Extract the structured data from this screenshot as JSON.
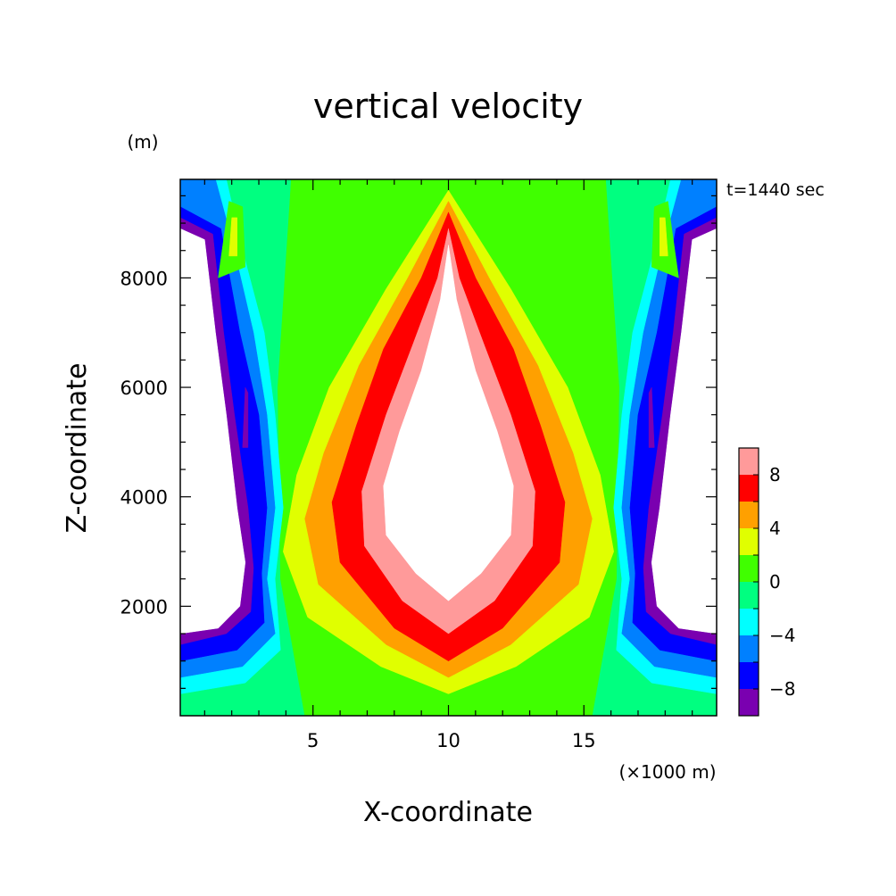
{
  "chart_data": {
    "type": "heatmap",
    "subtype": "filled-contour",
    "title": "vertical velocity",
    "xlabel": "X-coordinate",
    "ylabel": "Z-coordinate",
    "x_unit": "(×1000 m)",
    "y_unit": "(m)",
    "time_label": "t=1440 sec",
    "xlim": [
      0.1,
      19.9
    ],
    "ylim": [
      0,
      9800
    ],
    "x_ticks": [
      5,
      10,
      15
    ],
    "y_ticks": [
      2000,
      4000,
      6000,
      8000
    ],
    "x_tick_labels": [
      "5",
      "10",
      "15"
    ],
    "y_tick_labels": [
      "2000",
      "4000",
      "6000",
      "8000"
    ],
    "colorbar": {
      "levels": [
        -10,
        -8,
        -6,
        -4,
        -2,
        0,
        2,
        4,
        6,
        8,
        10
      ],
      "labels": [
        "8",
        "4",
        "0",
        "−4",
        "−8"
      ],
      "label_values": [
        8,
        4,
        0,
        -4,
        -8
      ],
      "colors": [
        "#7a00b0",
        "#0000ff",
        "#0080ff",
        "#00ffff",
        "#00ff80",
        "#40ff00",
        "#e0ff00",
        "#ffa000",
        "#ff0000",
        "#ff9a9a"
      ],
      "out_of_range_color": "#ffffff"
    },
    "regions": [
      {
        "level_min": -10,
        "level_max": 10,
        "color": "#00ff80",
        "points": [
          [
            0.1,
            0
          ],
          [
            19.9,
            0
          ],
          [
            19.9,
            9800
          ],
          [
            0.1,
            9800
          ]
        ]
      },
      {
        "level_min": 0,
        "level_max": 10,
        "color": "#40ff00",
        "points": [
          [
            4.7,
            0
          ],
          [
            15.3,
            0
          ],
          [
            16.2,
            2500
          ],
          [
            16.3,
            6000
          ],
          [
            15.8,
            9800
          ],
          [
            4.2,
            9800
          ],
          [
            3.7,
            6000
          ],
          [
            3.8,
            2500
          ]
        ]
      },
      {
        "level_min": 2,
        "level_max": 10,
        "color": "#e0ff00",
        "points": [
          [
            10,
            400
          ],
          [
            12.5,
            900
          ],
          [
            15.2,
            1800
          ],
          [
            16.1,
            3000
          ],
          [
            15.6,
            4400
          ],
          [
            14.4,
            6000
          ],
          [
            12.3,
            7800
          ],
          [
            10,
            9600
          ],
          [
            7.7,
            7800
          ],
          [
            5.6,
            6000
          ],
          [
            4.4,
            4400
          ],
          [
            3.9,
            3000
          ],
          [
            4.8,
            1800
          ],
          [
            7.5,
            900
          ]
        ]
      },
      {
        "level_min": 4,
        "level_max": 10,
        "color": "#ffa000",
        "points": [
          [
            10,
            700
          ],
          [
            12.3,
            1300
          ],
          [
            14.8,
            2400
          ],
          [
            15.3,
            3600
          ],
          [
            14.6,
            4800
          ],
          [
            13.3,
            6400
          ],
          [
            11.5,
            8000
          ],
          [
            10,
            9400
          ],
          [
            8.5,
            8000
          ],
          [
            6.7,
            6400
          ],
          [
            5.4,
            4800
          ],
          [
            4.7,
            3600
          ],
          [
            5.2,
            2400
          ],
          [
            7.7,
            1300
          ]
        ]
      },
      {
        "level_min": 6,
        "level_max": 10,
        "color": "#ff0000",
        "points": [
          [
            10,
            1000
          ],
          [
            12,
            1600
          ],
          [
            14.1,
            2800
          ],
          [
            14.3,
            3900
          ],
          [
            13.4,
            5300
          ],
          [
            12.4,
            6700
          ],
          [
            11,
            8000
          ],
          [
            10,
            9200
          ],
          [
            9,
            8000
          ],
          [
            7.6,
            6700
          ],
          [
            6.6,
            5300
          ],
          [
            5.7,
            3900
          ],
          [
            6.0,
            2800
          ],
          [
            8,
            1600
          ]
        ]
      },
      {
        "level_min": 8,
        "level_max": 10,
        "color": "#ff9a9a",
        "points": [
          [
            10,
            1500
          ],
          [
            11.7,
            2100
          ],
          [
            13.1,
            3100
          ],
          [
            13.2,
            4100
          ],
          [
            12.3,
            5500
          ],
          [
            11.3,
            6800
          ],
          [
            10.4,
            8000
          ],
          [
            10,
            8900
          ],
          [
            9.6,
            8000
          ],
          [
            8.7,
            6800
          ],
          [
            7.7,
            5500
          ],
          [
            6.8,
            4100
          ],
          [
            6.9,
            3100
          ],
          [
            8.3,
            2100
          ]
        ]
      },
      {
        "level_min": 10,
        "level_max": null,
        "color": "#ffffff",
        "points": [
          [
            10,
            2100
          ],
          [
            11.2,
            2600
          ],
          [
            12.3,
            3300
          ],
          [
            12.4,
            4200
          ],
          [
            11.8,
            5200
          ],
          [
            11,
            6300
          ],
          [
            10.3,
            7600
          ],
          [
            10,
            8600
          ],
          [
            9.7,
            7600
          ],
          [
            9,
            6300
          ],
          [
            8.2,
            5200
          ],
          [
            7.6,
            4200
          ],
          [
            7.7,
            3300
          ],
          [
            8.8,
            2600
          ]
        ]
      },
      {
        "level_min": -4,
        "level_max": -2,
        "color": "#00ffff",
        "points": [
          [
            0.1,
            400
          ],
          [
            2.5,
            600
          ],
          [
            3.8,
            1200
          ],
          [
            3.6,
            2500
          ],
          [
            3.9,
            3800
          ],
          [
            3.6,
            5500
          ],
          [
            3.2,
            7000
          ],
          [
            2.4,
            8500
          ],
          [
            1.8,
            9800
          ],
          [
            0.1,
            9800
          ]
        ]
      },
      {
        "level_min": -6,
        "level_max": -4,
        "color": "#0080ff",
        "points": [
          [
            0.1,
            700
          ],
          [
            2.4,
            900
          ],
          [
            3.6,
            1500
          ],
          [
            3.3,
            2500
          ],
          [
            3.6,
            3800
          ],
          [
            3.3,
            5500
          ],
          [
            2.8,
            7000
          ],
          [
            2.0,
            8700
          ],
          [
            1.4,
            9800
          ],
          [
            0.1,
            9800
          ]
        ]
      },
      {
        "level_min": -8,
        "level_max": -6,
        "color": "#0000ff",
        "points": [
          [
            0.1,
            1000
          ],
          [
            2.2,
            1200
          ],
          [
            3.2,
            1700
          ],
          [
            3.1,
            2600
          ],
          [
            3.3,
            3800
          ],
          [
            3.0,
            5500
          ],
          [
            2.3,
            7000
          ],
          [
            1.6,
            8900
          ],
          [
            0.1,
            9300
          ]
        ]
      },
      {
        "level_min": -10,
        "level_max": -8,
        "color": "#7a00b0",
        "points": [
          [
            0.1,
            1300
          ],
          [
            1.8,
            1500
          ],
          [
            2.7,
            1900
          ],
          [
            2.8,
            2700
          ],
          [
            2.6,
            3800
          ],
          [
            2.1,
            5500
          ],
          [
            1.7,
            7000
          ],
          [
            1.3,
            8800
          ],
          [
            0.1,
            9100
          ]
        ]
      },
      {
        "level_min": null,
        "level_max": -10,
        "color": "#ffffff",
        "points": [
          [
            0.1,
            1500
          ],
          [
            1.5,
            1600
          ],
          [
            2.3,
            2000
          ],
          [
            2.5,
            2800
          ],
          [
            2.2,
            3800
          ],
          [
            1.8,
            5500
          ],
          [
            1.4,
            7000
          ],
          [
            1.0,
            8700
          ],
          [
            0.1,
            8900
          ]
        ]
      },
      {
        "level_min": -4,
        "level_max": -2,
        "color": "#00ffff",
        "points": [
          [
            19.9,
            400
          ],
          [
            17.5,
            600
          ],
          [
            16.2,
            1200
          ],
          [
            16.4,
            2500
          ],
          [
            16.1,
            3800
          ],
          [
            16.4,
            5500
          ],
          [
            16.8,
            7000
          ],
          [
            17.6,
            8500
          ],
          [
            18.2,
            9800
          ],
          [
            19.9,
            9800
          ]
        ]
      },
      {
        "level_min": -6,
        "level_max": -4,
        "color": "#0080ff",
        "points": [
          [
            19.9,
            700
          ],
          [
            17.6,
            900
          ],
          [
            16.4,
            1500
          ],
          [
            16.7,
            2500
          ],
          [
            16.4,
            3800
          ],
          [
            16.7,
            5500
          ],
          [
            17.2,
            7000
          ],
          [
            18.0,
            8700
          ],
          [
            18.6,
            9800
          ],
          [
            19.9,
            9800
          ]
        ]
      },
      {
        "level_min": -8,
        "level_max": -6,
        "color": "#0000ff",
        "points": [
          [
            19.9,
            1000
          ],
          [
            17.8,
            1200
          ],
          [
            16.8,
            1700
          ],
          [
            16.9,
            2600
          ],
          [
            16.7,
            3800
          ],
          [
            17.0,
            5500
          ],
          [
            17.7,
            7000
          ],
          [
            18.4,
            8900
          ],
          [
            19.9,
            9300
          ]
        ]
      },
      {
        "level_min": -10,
        "level_max": -8,
        "color": "#7a00b0",
        "points": [
          [
            19.9,
            1300
          ],
          [
            18.2,
            1500
          ],
          [
            17.3,
            1900
          ],
          [
            17.2,
            2700
          ],
          [
            17.4,
            3800
          ],
          [
            17.9,
            5500
          ],
          [
            18.3,
            7000
          ],
          [
            18.7,
            8800
          ],
          [
            19.9,
            9100
          ]
        ]
      },
      {
        "level_min": null,
        "level_max": -10,
        "color": "#ffffff",
        "points": [
          [
            19.9,
            1500
          ],
          [
            18.5,
            1600
          ],
          [
            17.7,
            2000
          ],
          [
            17.5,
            2800
          ],
          [
            17.8,
            3800
          ],
          [
            18.2,
            5500
          ],
          [
            18.6,
            7000
          ],
          [
            19.0,
            8700
          ],
          [
            19.9,
            8900
          ]
        ]
      },
      {
        "level_min": 0,
        "level_max": 2,
        "color": "#40ff00",
        "points": [
          [
            1.5,
            8000
          ],
          [
            2.5,
            8200
          ],
          [
            2.4,
            9300
          ],
          [
            1.9,
            9400
          ]
        ]
      },
      {
        "level_min": 2,
        "level_max": 4,
        "color": "#e0ff00",
        "points": [
          [
            1.9,
            8400
          ],
          [
            2.2,
            8400
          ],
          [
            2.2,
            9100
          ],
          [
            2.0,
            9100
          ]
        ]
      },
      {
        "level_min": 0,
        "level_max": 2,
        "color": "#40ff00",
        "points": [
          [
            18.5,
            8000
          ],
          [
            17.5,
            8200
          ],
          [
            17.6,
            9300
          ],
          [
            18.1,
            9400
          ]
        ]
      },
      {
        "level_min": 2,
        "level_max": 4,
        "color": "#e0ff00",
        "points": [
          [
            18.1,
            8400
          ],
          [
            17.8,
            8400
          ],
          [
            17.8,
            9100
          ],
          [
            18.0,
            9100
          ]
        ]
      },
      {
        "level_min": -10,
        "level_max": -8,
        "color": "#7a00b0",
        "points": [
          [
            2.4,
            4900
          ],
          [
            2.6,
            4900
          ],
          [
            2.6,
            5900
          ],
          [
            2.5,
            6000
          ]
        ]
      },
      {
        "level_min": -10,
        "level_max": -8,
        "color": "#7a00b0",
        "points": [
          [
            17.6,
            4900
          ],
          [
            17.4,
            4900
          ],
          [
            17.4,
            5900
          ],
          [
            17.5,
            6000
          ]
        ]
      }
    ]
  }
}
